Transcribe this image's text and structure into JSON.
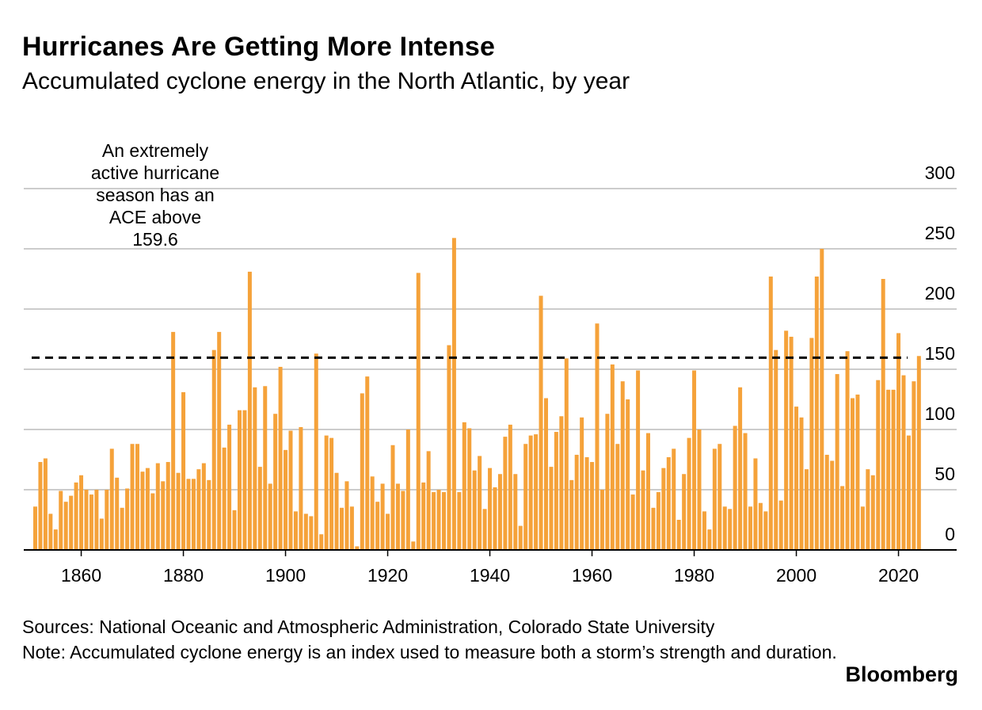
{
  "header": {
    "title": "Hurricanes Are Getting More Intense",
    "subtitle": "Accumulated cyclone energy in the North Atlantic, by year"
  },
  "annotation": "An extremely active hurricane season has an ACE above 159.6",
  "footer": {
    "sources": "Sources: National Oceanic and Atmospheric Administration, Colorado State University",
    "note": "Note: Accumulated cyclone energy is an index used to measure both a storm’s strength and duration.",
    "brand": "Bloomberg"
  },
  "colors": {
    "bar": "#F5A23A",
    "gridline": "#cccccc",
    "axis": "#000000",
    "threshold": "#000000"
  },
  "chart_data": {
    "type": "bar",
    "title": "Hurricanes Are Getting More Intense",
    "subtitle": "Accumulated cyclone energy in the North Atlantic, by year",
    "xlabel": "",
    "ylabel": "",
    "ylim": [
      0,
      300
    ],
    "yticks": [
      0,
      50,
      100,
      150,
      200,
      250,
      300
    ],
    "xticks": [
      1860,
      1880,
      1900,
      1920,
      1940,
      1960,
      1980,
      2000,
      2020
    ],
    "xlim": [
      1850,
      2024
    ],
    "y_axis_position": "right",
    "grid": true,
    "threshold": {
      "value": 159.6,
      "style": "dashed"
    },
    "series": [
      {
        "x": [
          1851,
          1852,
          1853,
          1854,
          1855,
          1856,
          1857,
          1858,
          1859,
          1860,
          1861,
          1862,
          1863,
          1864,
          1865,
          1866,
          1867,
          1868,
          1869,
          1870,
          1871,
          1872,
          1873,
          1874,
          1875,
          1876,
          1877,
          1878,
          1879,
          1880,
          1881,
          1882,
          1883,
          1884,
          1885,
          1886,
          1887,
          1888,
          1889,
          1890,
          1891,
          1892,
          1893,
          1894,
          1895,
          1896,
          1897,
          1898,
          1899,
          1900,
          1901,
          1902,
          1903,
          1904,
          1905,
          1906,
          1907,
          1908,
          1909,
          1910,
          1911,
          1912,
          1913,
          1914,
          1915,
          1916,
          1917,
          1918,
          1919,
          1920,
          1921,
          1922,
          1923,
          1924,
          1925,
          1926,
          1927,
          1928,
          1929,
          1930,
          1931,
          1932,
          1933,
          1934,
          1935,
          1936,
          1937,
          1938,
          1939,
          1940,
          1941,
          1942,
          1943,
          1944,
          1945,
          1946,
          1947,
          1948,
          1949,
          1950,
          1951,
          1952,
          1953,
          1954,
          1955,
          1956,
          1957,
          1958,
          1959,
          1960,
          1961,
          1962,
          1963,
          1964,
          1965,
          1966,
          1967,
          1968,
          1969,
          1970,
          1971,
          1972,
          1973,
          1974,
          1975,
          1976,
          1977,
          1978,
          1979,
          1980,
          1981,
          1982,
          1983,
          1984,
          1985,
          1986,
          1987,
          1988,
          1989,
          1990,
          1991,
          1992,
          1993,
          1994,
          1995,
          1996,
          1997,
          1998,
          1999,
          2000,
          2001,
          2002,
          2003,
          2004,
          2005,
          2006,
          2007,
          2008,
          2009,
          2010,
          2011,
          2012,
          2013,
          2014,
          2015,
          2016,
          2017,
          2018,
          2019,
          2020,
          2021,
          2022,
          2023,
          2024
        ],
        "values": [
          36,
          73,
          76,
          30,
          17,
          49,
          40,
          45,
          56,
          62,
          50,
          46,
          50,
          26,
          50,
          84,
          60,
          35,
          51,
          88,
          88,
          65,
          68,
          47,
          72,
          57,
          73,
          181,
          64,
          131,
          59,
          59,
          67,
          72,
          58,
          166,
          181,
          85,
          104,
          33,
          116,
          116,
          231,
          135,
          69,
          136,
          55,
          113,
          152,
          83,
          99,
          32,
          102,
          30,
          28,
          163,
          13,
          95,
          93,
          64,
          35,
          57,
          36,
          3,
          130,
          144,
          61,
          40,
          55,
          30,
          87,
          55,
          49,
          100,
          7,
          230,
          56,
          82,
          48,
          50,
          48,
          170,
          259,
          48,
          106,
          101,
          66,
          78,
          34,
          68,
          52,
          63,
          94,
          104,
          63,
          20,
          88,
          95,
          96,
          211,
          126,
          69,
          98,
          111,
          159,
          58,
          79,
          110,
          77,
          73,
          188,
          50,
          113,
          154,
          88,
          140,
          125,
          46,
          149,
          66,
          97,
          35,
          48,
          68,
          77,
          84,
          25,
          63,
          93,
          149,
          100,
          32,
          17,
          84,
          88,
          36,
          34,
          103,
          135,
          97,
          36,
          76,
          39,
          32,
          227,
          166,
          41,
          182,
          177,
          119,
          110,
          67,
          176,
          227,
          250,
          79,
          74,
          146,
          53,
          165,
          126,
          129,
          36,
          67,
          62,
          141,
          225,
          133,
          133,
          180,
          145,
          95,
          140,
          161
        ]
      }
    ]
  }
}
